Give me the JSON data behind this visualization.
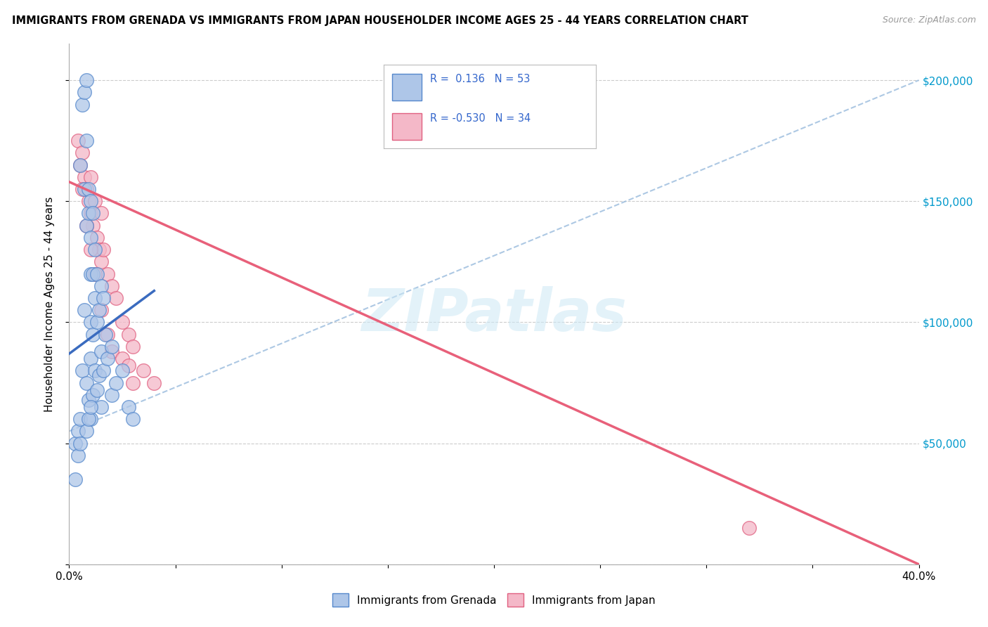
{
  "title": "IMMIGRANTS FROM GRENADA VS IMMIGRANTS FROM JAPAN HOUSEHOLDER INCOME AGES 25 - 44 YEARS CORRELATION CHART",
  "source": "Source: ZipAtlas.com",
  "ylabel": "Householder Income Ages 25 - 44 years",
  "xlim": [
    0.0,
    0.4
  ],
  "ylim": [
    0,
    215000
  ],
  "xticks": [
    0.0,
    0.05,
    0.1,
    0.15,
    0.2,
    0.25,
    0.3,
    0.35,
    0.4
  ],
  "xticklabels": [
    "0.0%",
    "",
    "",
    "",
    "",
    "",
    "",
    "",
    "40.0%"
  ],
  "yticks": [
    0,
    50000,
    100000,
    150000,
    200000
  ],
  "yticklabels": [
    "",
    "$50,000",
    "$100,000",
    "$150,000",
    "$200,000"
  ],
  "grenada_R": 0.136,
  "grenada_N": 53,
  "japan_R": -0.53,
  "japan_N": 34,
  "grenada_color": "#aec6e8",
  "japan_color": "#f4b8c8",
  "grenada_edge_color": "#5588cc",
  "japan_edge_color": "#e06080",
  "grenada_line_color": "#3a6bbf",
  "japan_line_color": "#e8607a",
  "dashed_line_color": "#99bbdd",
  "watermark": "ZIPatlas",
  "background_color": "#ffffff",
  "grenada_scatter_x": [
    0.003,
    0.004,
    0.005,
    0.005,
    0.006,
    0.006,
    0.007,
    0.007,
    0.007,
    0.008,
    0.008,
    0.008,
    0.008,
    0.009,
    0.009,
    0.009,
    0.01,
    0.01,
    0.01,
    0.01,
    0.01,
    0.01,
    0.011,
    0.011,
    0.011,
    0.011,
    0.012,
    0.012,
    0.012,
    0.013,
    0.013,
    0.013,
    0.014,
    0.014,
    0.015,
    0.015,
    0.015,
    0.016,
    0.016,
    0.017,
    0.018,
    0.02,
    0.02,
    0.022,
    0.025,
    0.028,
    0.03,
    0.003,
    0.004,
    0.005,
    0.008,
    0.009,
    0.01
  ],
  "grenada_scatter_y": [
    50000,
    55000,
    165000,
    60000,
    190000,
    80000,
    195000,
    155000,
    105000,
    200000,
    175000,
    140000,
    75000,
    155000,
    145000,
    68000,
    150000,
    135000,
    120000,
    100000,
    85000,
    60000,
    145000,
    120000,
    95000,
    70000,
    130000,
    110000,
    80000,
    120000,
    100000,
    72000,
    105000,
    78000,
    115000,
    88000,
    65000,
    110000,
    80000,
    95000,
    85000,
    90000,
    70000,
    75000,
    80000,
    65000,
    60000,
    35000,
    45000,
    50000,
    55000,
    60000,
    65000
  ],
  "japan_scatter_x": [
    0.004,
    0.005,
    0.006,
    0.007,
    0.008,
    0.009,
    0.01,
    0.01,
    0.011,
    0.012,
    0.013,
    0.014,
    0.015,
    0.015,
    0.016,
    0.018,
    0.02,
    0.022,
    0.025,
    0.028,
    0.03,
    0.035,
    0.04,
    0.006,
    0.008,
    0.01,
    0.012,
    0.015,
    0.018,
    0.02,
    0.025,
    0.03,
    0.32,
    0.028
  ],
  "japan_scatter_y": [
    175000,
    165000,
    170000,
    160000,
    155000,
    150000,
    160000,
    145000,
    140000,
    150000,
    135000,
    130000,
    145000,
    125000,
    130000,
    120000,
    115000,
    110000,
    100000,
    95000,
    90000,
    80000,
    75000,
    155000,
    140000,
    130000,
    120000,
    105000,
    95000,
    88000,
    85000,
    75000,
    15000,
    82000
  ],
  "japan_line_x0": 0.0,
  "japan_line_y0": 158000,
  "japan_line_x1": 0.4,
  "japan_line_y1": 0,
  "grenada_line_x0": 0.0,
  "grenada_line_y0": 87000,
  "grenada_line_x1": 0.04,
  "grenada_line_y1": 113000,
  "dashed_line_x0": 0.0,
  "dashed_line_y0": 55000,
  "dashed_line_x1": 0.4,
  "dashed_line_y1": 200000
}
